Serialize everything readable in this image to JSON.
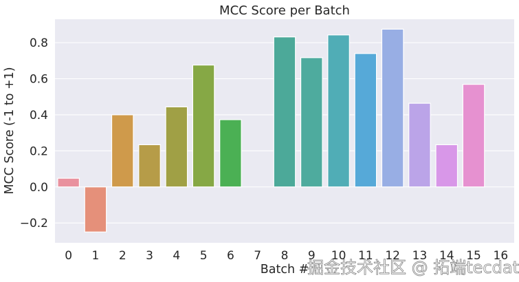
{
  "chart_data": {
    "type": "bar",
    "title": "MCC Score per Batch",
    "xlabel": "Batch #",
    "ylabel": "MCC Score (-1 to +1)",
    "categories": [
      "0",
      "1",
      "2",
      "3",
      "4",
      "5",
      "6",
      "7",
      "8",
      "9",
      "10",
      "11",
      "12",
      "13",
      "14",
      "15",
      "16"
    ],
    "values": [
      0.048,
      -0.25,
      0.4,
      0.234,
      0.444,
      0.676,
      0.373,
      0.0,
      0.832,
      0.717,
      0.843,
      0.74,
      0.875,
      0.464,
      0.234,
      0.569,
      0.0
    ],
    "colors": [
      "#e9919e",
      "#e5907a",
      "#cf9a4b",
      "#b69c48",
      "#a0a045",
      "#86a845",
      "#4bb054",
      "#4bb092",
      "#4ca999",
      "#4eab9e",
      "#50adb6",
      "#56a9d8",
      "#98aee4",
      "#bba4e8",
      "#d897e8",
      "#e691d0",
      "#e891c3"
    ],
    "ylim": [
      -0.31,
      0.93
    ],
    "yticks": [
      -0.2,
      0.0,
      0.2,
      0.4,
      0.6,
      0.8
    ],
    "ytick_labels": [
      "−0.2",
      "0.0",
      "0.2",
      "0.4",
      "0.6",
      "0.8"
    ],
    "grid": true,
    "legend": null,
    "style": {
      "background": "#eaeaf2",
      "grid_color": "#ffffff",
      "bar_edge": "#ffffff"
    }
  },
  "watermark": "掘金技术社区 @ 拓端tecdat"
}
